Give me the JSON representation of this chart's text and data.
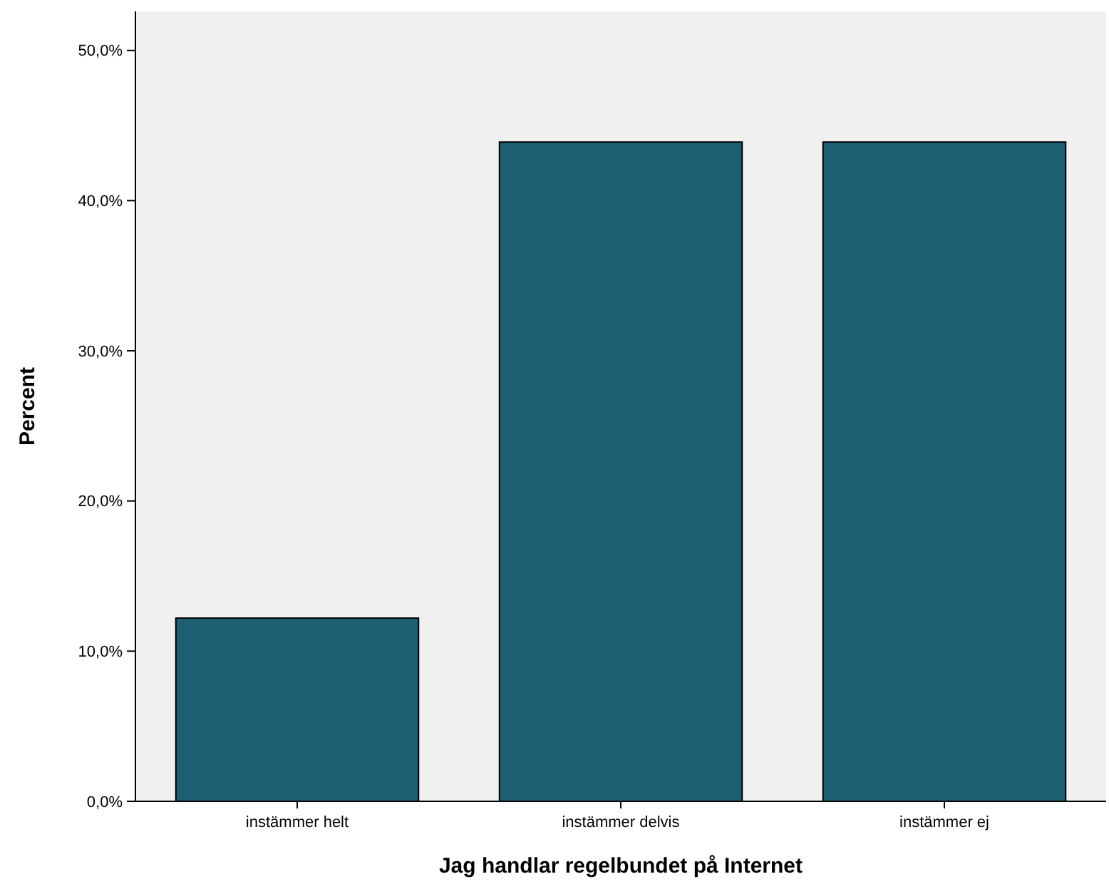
{
  "chart_data": {
    "type": "bar",
    "xlabel": "Jag handlar regelbundet på Internet",
    "ylabel": "Percent",
    "categories": [
      "instämmer helt",
      "instämmer delvis",
      "instämmer ej"
    ],
    "values": [
      12.2,
      43.9,
      43.9
    ],
    "color": "#1f5f74",
    "ylim": [
      0,
      52.6
    ],
    "yticks": [
      {
        "value": 0,
        "label": "0,0%"
      },
      {
        "value": 10,
        "label": "10,0%"
      },
      {
        "value": 20,
        "label": "20,0%"
      },
      {
        "value": 30,
        "label": "30,0%"
      },
      {
        "value": 40,
        "label": "40,0%"
      },
      {
        "value": 50,
        "label": "50,0%"
      }
    ],
    "grid": false
  }
}
